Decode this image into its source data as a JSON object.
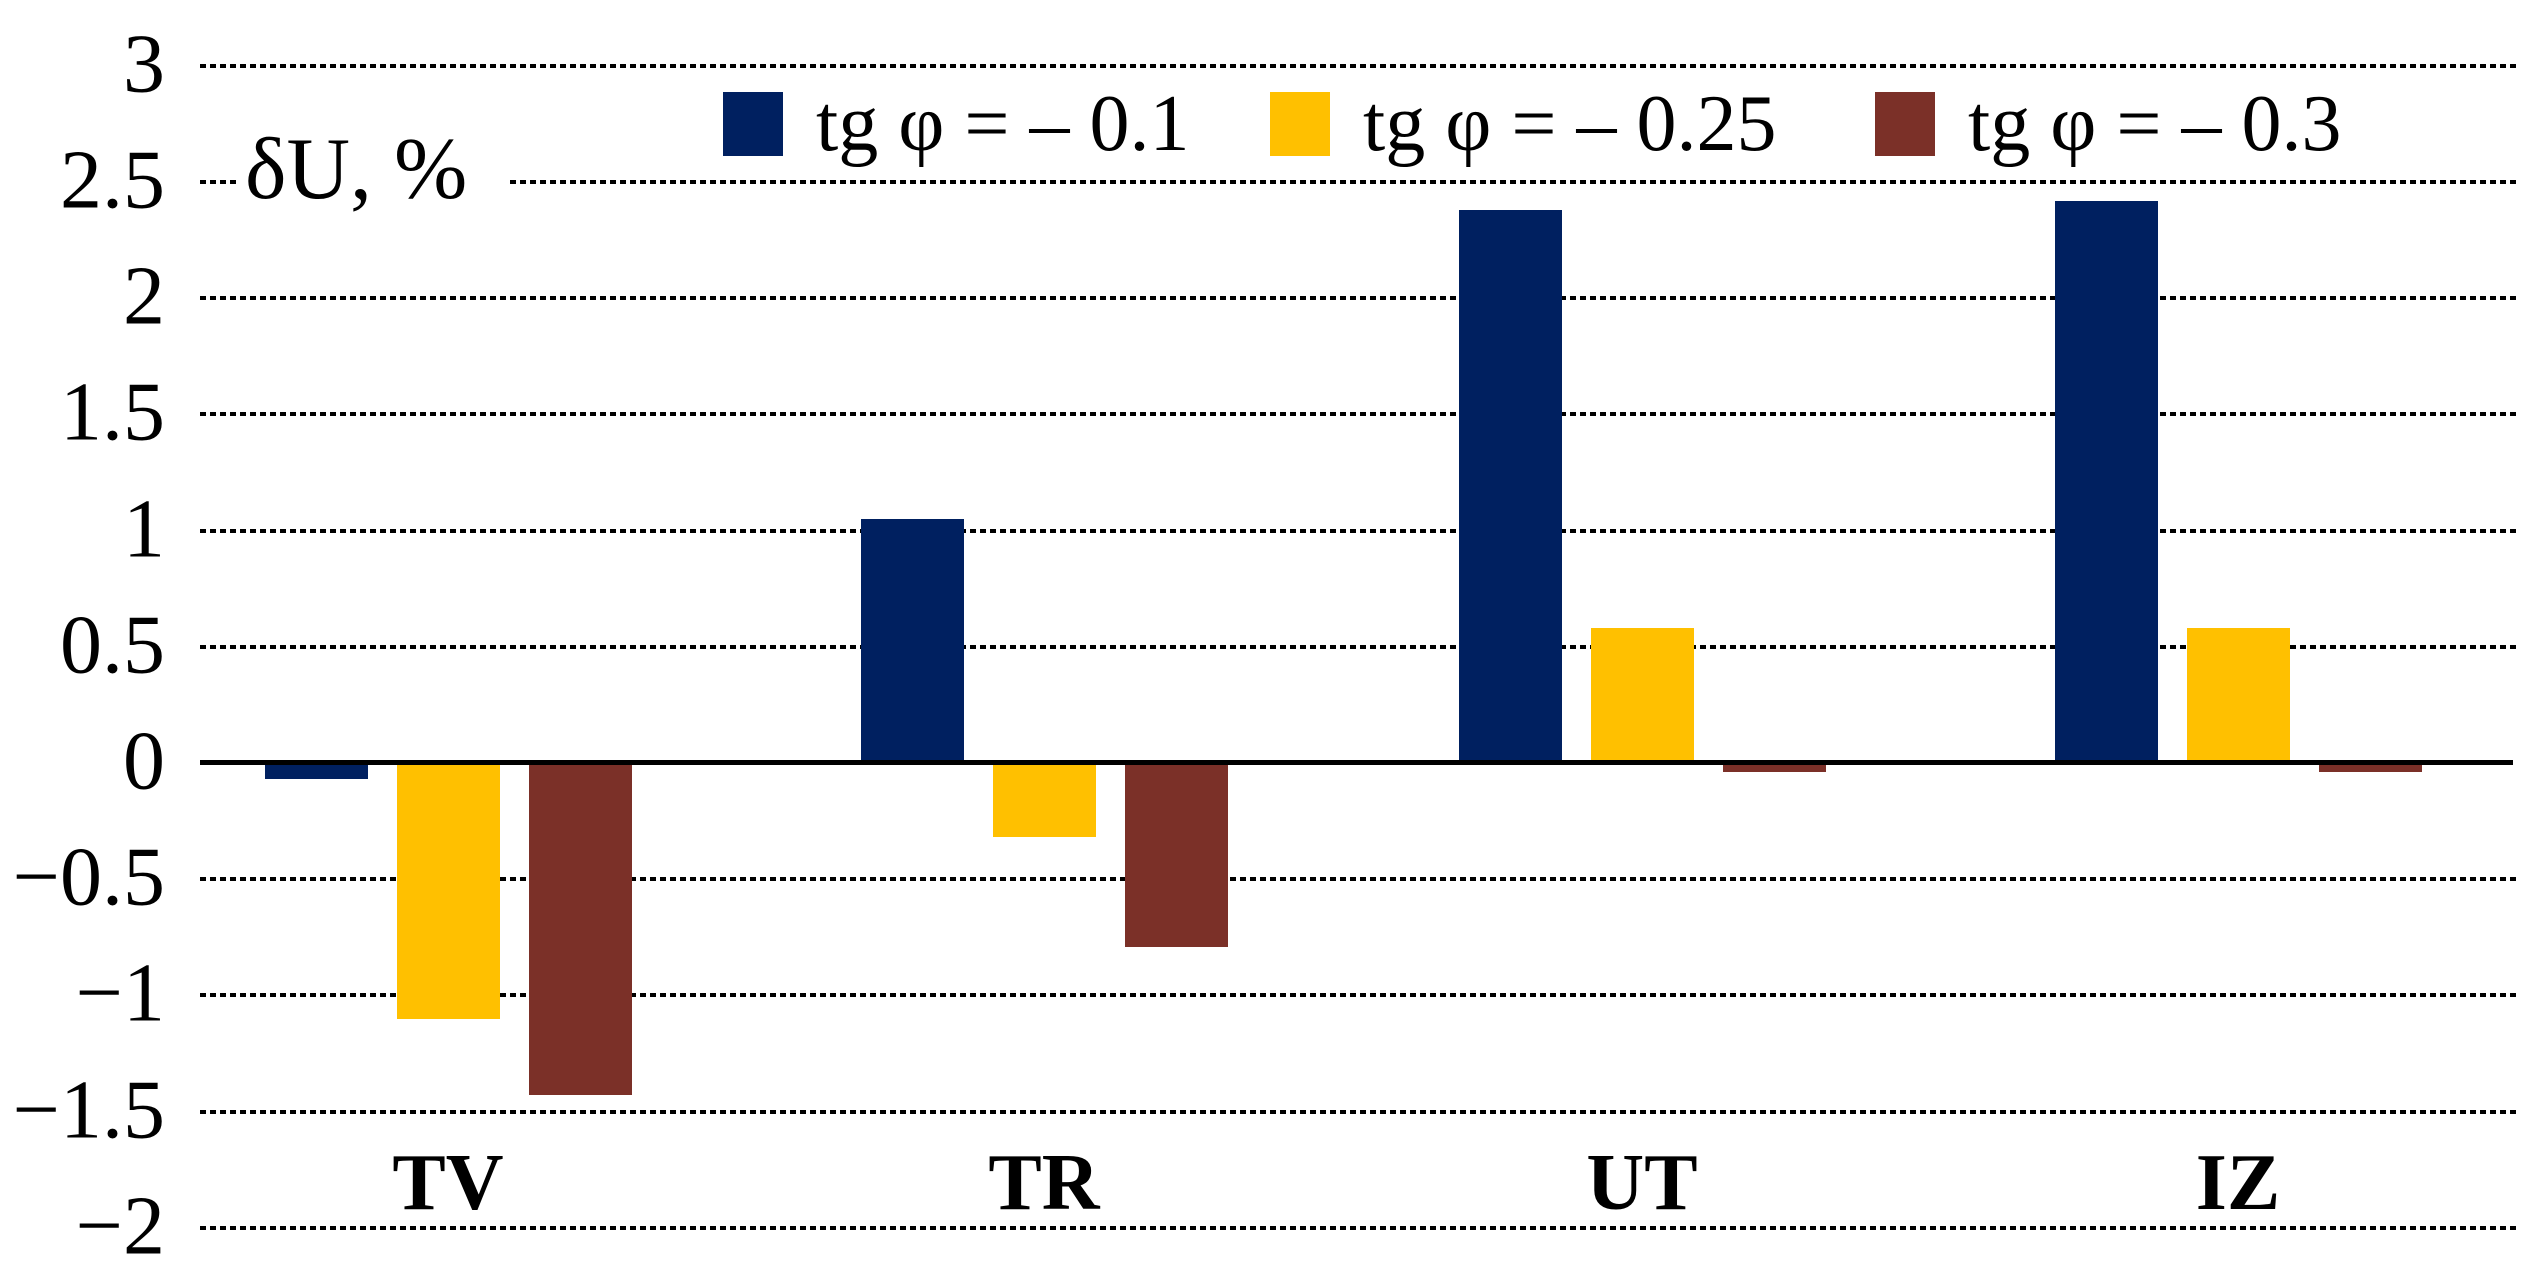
{
  "chart_data": {
    "type": "bar",
    "title": "",
    "xlabel": "",
    "ylabel": "δU, %",
    "categories": [
      "TV",
      "TR",
      "UT",
      "IZ"
    ],
    "series": [
      {
        "name": "tg φ = – 0.1",
        "color": "#002060",
        "values": [
          -0.07,
          1.05,
          2.38,
          2.42
        ]
      },
      {
        "name": "tg φ = – 0.25",
        "color": "#FFC000",
        "values": [
          -1.1,
          -0.32,
          0.58,
          0.58
        ]
      },
      {
        "name": "tg φ = – 0.3",
        "color": "#7B3028",
        "values": [
          -1.43,
          -0.79,
          -0.04,
          -0.04
        ]
      }
    ],
    "ylim": [
      -2,
      3
    ],
    "ytick_step": 0.5,
    "ytick_labels": [
      "3",
      "2.5",
      "2",
      "1.5",
      "1",
      "0.5",
      "0",
      "−0.5",
      "−1",
      "−1.5",
      "−2"
    ],
    "grid": "horizontal-dotted",
    "legend_position": "top",
    "gridline_color": "#000000",
    "axis_color": "#000000"
  }
}
